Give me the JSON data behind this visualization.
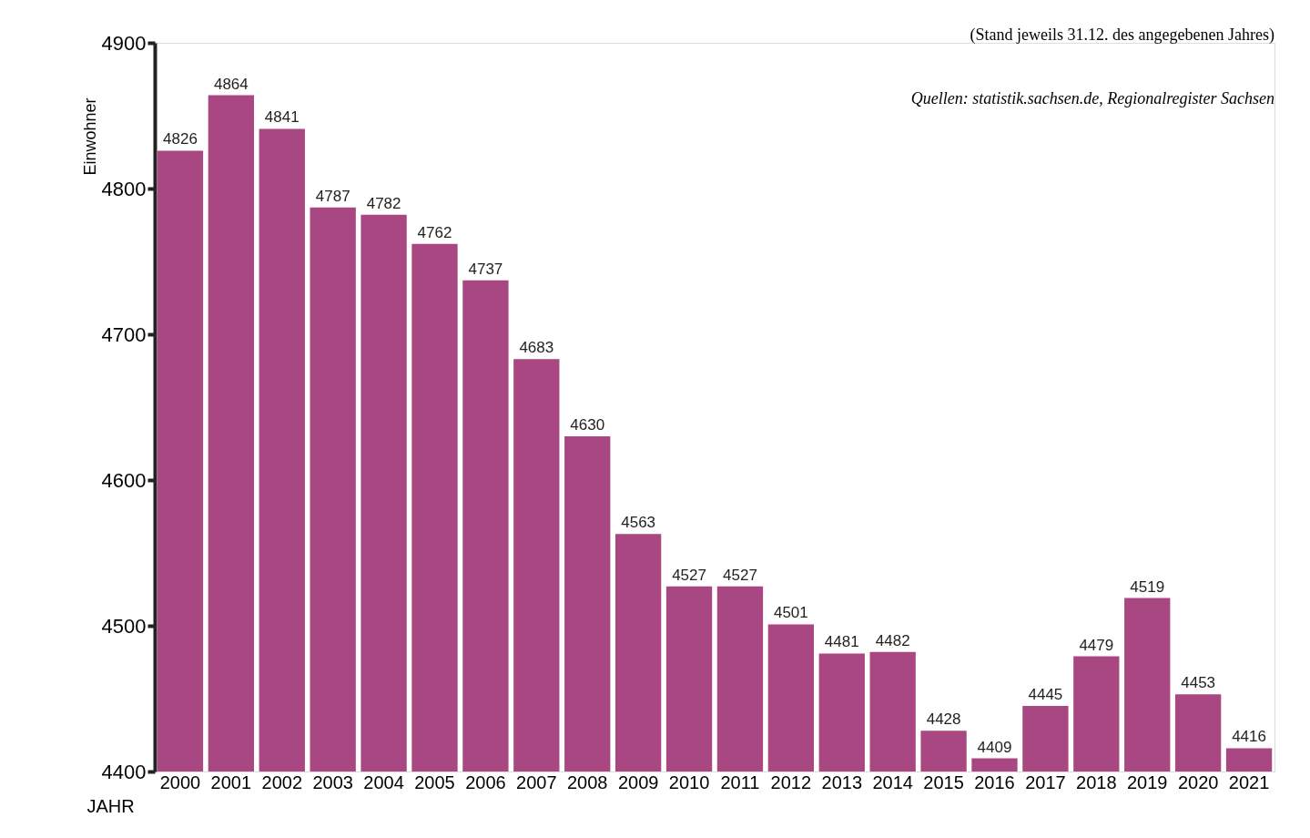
{
  "chart_data": {
    "type": "bar",
    "xlabel": "JAHR",
    "ylabel": "Einwohner",
    "categories": [
      "2000",
      "2001",
      "2002",
      "2003",
      "2004",
      "2005",
      "2006",
      "2007",
      "2008",
      "2009",
      "2010",
      "2011",
      "2012",
      "2013",
      "2014",
      "2015",
      "2016",
      "2017",
      "2018",
      "2019",
      "2020",
      "2021"
    ],
    "values": [
      4826,
      4864,
      4841,
      4787,
      4782,
      4762,
      4737,
      4683,
      4630,
      4563,
      4527,
      4527,
      4501,
      4481,
      4482,
      4428,
      4409,
      4445,
      4479,
      4519,
      4453,
      4416
    ],
    "color": "#a94782",
    "ylim": [
      4400,
      4900
    ],
    "yticks": [
      4400,
      4500,
      4600,
      4700,
      4800,
      4900
    ],
    "grid": false,
    "data_labels": true,
    "annotations": [
      "(Stand jeweils 31.12. des angegebenen Jahres)",
      "Quellen: statistik.sachsen.de, Regionalregister Sachsen"
    ]
  }
}
